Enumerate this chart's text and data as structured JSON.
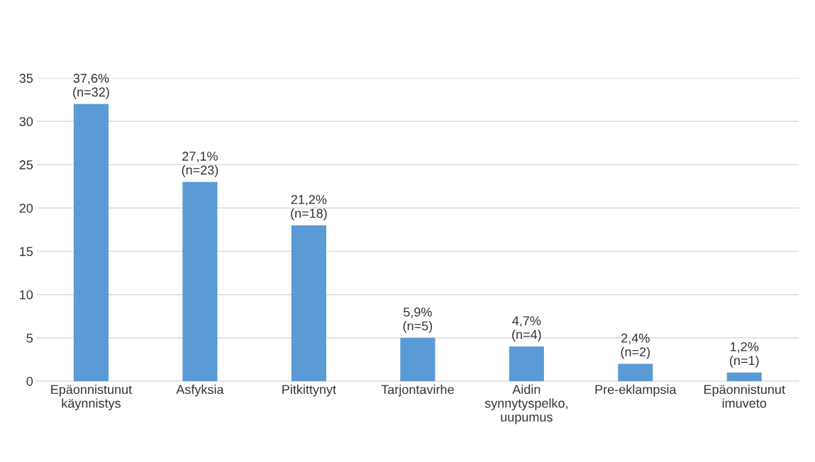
{
  "chart_data": {
    "type": "bar",
    "categories": [
      "Epäonnistunut\nkäynnistys",
      "Asfyksia",
      "Pitkittynyt",
      "Tarjontavirhe",
      "Aidin\nsynnytyspelko,\nuupumus",
      "Pre-eklampsia",
      "Epäonnistunut\nimuveto"
    ],
    "values": [
      32,
      23,
      18,
      5,
      4,
      2,
      1
    ],
    "value_labels": [
      "37,6%\n(n=32)",
      "27,1%\n(n=23)",
      "21,2%\n(n=18)",
      "5,9%\n(n=5)",
      "4,7%\n(n=4)",
      "2,4%\n(n=2)",
      "1,2%\n(n=1)"
    ],
    "color": "#5b9bd5",
    "ylim": [
      0,
      35
    ],
    "yticks": [
      0,
      5,
      10,
      15,
      20,
      25,
      30,
      35
    ],
    "grid": "y",
    "legend": false
  }
}
